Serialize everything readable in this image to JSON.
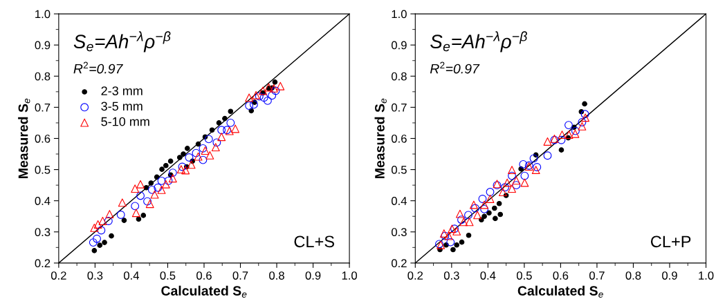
{
  "chart_data": [
    {
      "type": "scatter",
      "xlabel": "Calculated S$_{e}$",
      "ylabel": "Measured S$_{e}$",
      "annotations": [
        "S$_{e}$=Ah$^{−λ}$ρ$^{−β}$",
        "R$^{2}$=0.97",
        "CL+S"
      ],
      "xlim": [
        0.2,
        1.0
      ],
      "ylim": [
        0.2,
        1.0
      ],
      "xticks": [
        0.2,
        0.3,
        0.4,
        0.5,
        0.6,
        0.7,
        0.8,
        0.9,
        {
          "value": 1.0,
          "label": "1.0"
        }
      ],
      "yticks": [
        0.2,
        0.3,
        0.4,
        0.5,
        0.6,
        0.7,
        0.8,
        0.9,
        {
          "value": 1.0,
          "label": "1.0"
        }
      ],
      "grid": false,
      "legend": "top left",
      "series": [
        {
          "type": "line",
          "color": "#000000",
          "marker": "none",
          "line_style": "solid",
          "x": [
            0.2,
            1.0
          ],
          "values": [
            0.2,
            1.0
          ]
        },
        {
          "name": "2-3 mm",
          "color": "#000000",
          "marker": "circle",
          "x": [
            0.298,
            0.313,
            0.326,
            0.345,
            0.38,
            0.42,
            0.433,
            0.441,
            0.454,
            0.47,
            0.484,
            0.495,
            0.508,
            0.508,
            0.533,
            0.543,
            0.554,
            0.552,
            0.568,
            0.584,
            0.603,
            0.622,
            0.641,
            0.657,
            0.673,
            0.73,
            0.739,
            0.762,
            0.778,
            0.795,
            0.787
          ],
          "values": [
            0.24,
            0.257,
            0.266,
            0.287,
            0.337,
            0.341,
            0.353,
            0.442,
            0.457,
            0.476,
            0.501,
            0.513,
            0.527,
            0.483,
            0.539,
            0.55,
            0.568,
            0.509,
            0.527,
            0.582,
            0.605,
            0.627,
            0.65,
            0.664,
            0.687,
            0.689,
            0.716,
            0.746,
            0.761,
            0.781,
            0.762
          ]
        },
        {
          "name": "3-5 mm",
          "color": "#0000ff",
          "marker": "circle",
          "x": [
            0.295,
            0.305,
            0.317,
            0.337,
            0.371,
            0.41,
            0.425,
            0.444,
            0.457,
            0.473,
            0.483,
            0.502,
            0.514,
            0.54,
            0.559,
            0.578,
            0.597,
            0.597,
            0.613,
            0.635,
            0.648,
            0.663,
            0.673,
            0.724,
            0.737,
            0.752,
            0.765,
            0.775,
            0.787,
            0.797
          ],
          "values": [
            0.266,
            0.278,
            0.305,
            0.335,
            0.355,
            0.383,
            0.416,
            0.398,
            0.435,
            0.442,
            0.464,
            0.464,
            0.49,
            0.509,
            0.539,
            0.553,
            0.531,
            0.568,
            0.598,
            0.587,
            0.627,
            0.627,
            0.65,
            0.705,
            0.709,
            0.735,
            0.731,
            0.721,
            0.738,
            0.753
          ]
        },
        {
          "name": "5-10 mm",
          "color": "#ff0000",
          "marker": "triangle",
          "x": [
            0.298,
            0.308,
            0.321,
            0.34,
            0.375,
            0.41,
            0.425,
            0.413,
            0.451,
            0.464,
            0.483,
            0.495,
            0.514,
            0.537,
            0.549,
            0.565,
            0.584,
            0.603,
            0.616,
            0.632,
            0.648,
            0.67,
            0.686,
            0.724,
            0.743,
            0.762,
            0.778,
            0.792,
            0.81
          ],
          "values": [
            0.313,
            0.324,
            0.335,
            0.357,
            0.394,
            0.439,
            0.453,
            0.361,
            0.39,
            0.42,
            0.435,
            0.453,
            0.472,
            0.501,
            0.498,
            0.516,
            0.542,
            0.561,
            0.546,
            0.572,
            0.605,
            0.624,
            0.631,
            0.731,
            0.739,
            0.753,
            0.764,
            0.761,
            0.768
          ]
        }
      ]
    },
    {
      "type": "scatter",
      "xlabel": "Calculated S$_{e}$",
      "ylabel": "Measured S$_{e}$",
      "annotations": [
        "S$_{e}$=Ah$^{−λ}$ρ$^{−β}$",
        "R$^{2}$=0.97",
        "CL+P"
      ],
      "xlim": [
        0.2,
        1.0
      ],
      "ylim": [
        0.2,
        1.0
      ],
      "xticks": [
        0.2,
        0.3,
        0.4,
        0.5,
        0.6,
        0.7,
        0.8,
        0.9,
        {
          "value": 1.0,
          "label": "1.0"
        }
      ],
      "yticks": [
        0.2,
        0.3,
        0.4,
        0.5,
        0.6,
        0.7,
        0.8,
        0.9,
        {
          "value": 1.0,
          "label": "1.0"
        }
      ],
      "grid": false,
      "series": [
        {
          "type": "line",
          "color": "#000000",
          "marker": "none",
          "line_style": "solid",
          "x": [
            0.2,
            1.0
          ],
          "values": [
            0.2,
            1.0
          ]
        },
        {
          "color": "#000000",
          "marker": "circle",
          "x": [
            0.268,
            0.285,
            0.304,
            0.314,
            0.328,
            0.347,
            0.382,
            0.39,
            0.403,
            0.42,
            0.434,
            0.418,
            0.431,
            0.45,
            0.491,
            0.532,
            0.602,
            0.621,
            0.637,
            0.657,
            0.666
          ],
          "values": [
            0.243,
            0.258,
            0.243,
            0.258,
            0.267,
            0.289,
            0.339,
            0.35,
            0.361,
            0.343,
            0.356,
            0.376,
            0.391,
            0.417,
            0.502,
            0.547,
            0.563,
            0.602,
            0.636,
            0.686,
            0.711
          ]
        },
        {
          "color": "#0000ff",
          "marker": "circle",
          "x": [
            0.266,
            0.282,
            0.297,
            0.308,
            0.327,
            0.346,
            0.365,
            0.385,
            0.406,
            0.39,
            0.425,
            0.447,
            0.466,
            0.478,
            0.497,
            0.501,
            0.513,
            0.526,
            0.535,
            0.564,
            0.583,
            0.602,
            0.622,
            0.641,
            0.659,
            0.667
          ],
          "values": [
            0.261,
            0.287,
            0.267,
            0.31,
            0.339,
            0.354,
            0.376,
            0.406,
            0.428,
            0.373,
            0.45,
            0.443,
            0.48,
            0.45,
            0.517,
            0.48,
            0.513,
            0.536,
            0.508,
            0.545,
            0.595,
            0.595,
            0.643,
            0.624,
            0.652,
            0.678
          ]
        },
        {
          "color": "#ff0000",
          "marker": "triangle",
          "x": [
            0.27,
            0.279,
            0.292,
            0.301,
            0.314,
            0.323,
            0.333,
            0.349,
            0.361,
            0.371,
            0.39,
            0.406,
            0.425,
            0.441,
            0.453,
            0.466,
            0.478,
            0.466,
            0.501,
            0.513,
            0.532,
            0.564,
            0.583,
            0.604,
            0.623,
            0.64,
            0.659,
            0.668
          ],
          "values": [
            0.258,
            0.295,
            0.287,
            0.31,
            0.302,
            0.358,
            0.332,
            0.332,
            0.387,
            0.354,
            0.387,
            0.406,
            0.454,
            0.428,
            0.458,
            0.439,
            0.465,
            0.499,
            0.458,
            0.51,
            0.499,
            0.59,
            0.599,
            0.612,
            0.612,
            0.615,
            0.639,
            0.667
          ]
        }
      ]
    }
  ]
}
